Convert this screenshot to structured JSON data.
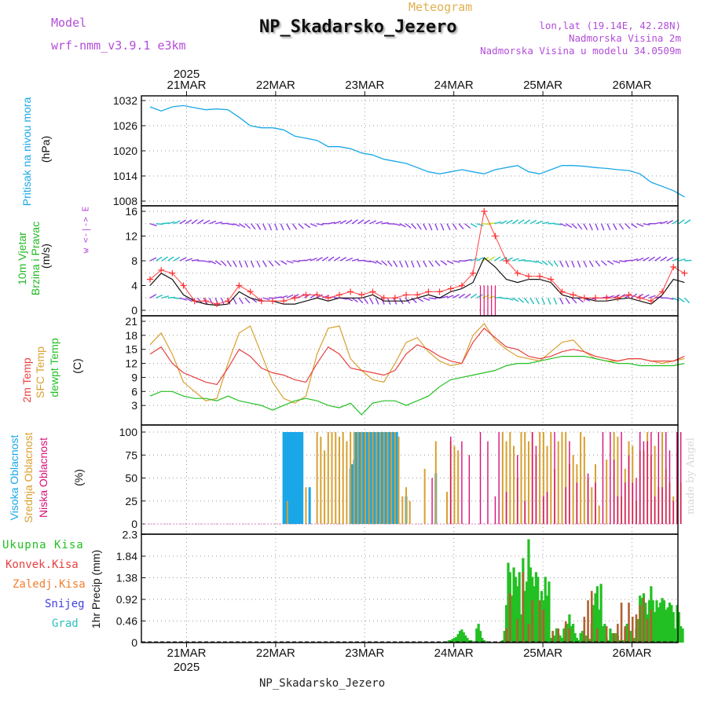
{
  "header": {
    "model_label": "Model",
    "model_name": "wrf-nmm_v3.9.1 e3km",
    "meteogram_label": "Meteogram",
    "station_title": "NP_Skadarsko_Jezero",
    "lonlat": "lon,lat (19.14E, 42.28N)",
    "altitude": "Nadmorska Visina 2m",
    "model_altitude": "Nadmorska Visina u modelu 34.0509m",
    "footer_station": "NP_Skadarsko_Jezero",
    "credit": "made by Angel"
  },
  "colors": {
    "pressure": "#1aa7e8",
    "wind_label": "#22b822",
    "temp2m": "#e84040",
    "sfc": "#d8a030",
    "dew": "#22c022",
    "high_cloud": "#1aa7e8",
    "mid_cloud": "#d8a030",
    "low_cloud": "#d8107a",
    "total_precip": "#22c022",
    "conv_precip": "#e84040",
    "freezing_rain": "#f08030",
    "snow": "#4040e0",
    "hail": "#30c0c0",
    "violet": "#b34dd9"
  },
  "chart_data": [
    {
      "type": "line",
      "name": "pressure",
      "title": "Pritisak na nivou mora",
      "ylabel": "(hPa)",
      "ylim": [
        1008,
        1032
      ],
      "yticks": [
        "1008",
        "1014",
        "1020",
        "1026",
        "1032"
      ],
      "x_hours": [
        0,
        3,
        6,
        9,
        12,
        15,
        18,
        21,
        24,
        27,
        30,
        33,
        36,
        39,
        42,
        45,
        48,
        51,
        54,
        57,
        60,
        63,
        66,
        69,
        72,
        75,
        78,
        81,
        84,
        87,
        90,
        93,
        96,
        99,
        102,
        105,
        108,
        111,
        114,
        117,
        120,
        123,
        126,
        129,
        132,
        135,
        138,
        141,
        144
      ],
      "values": [
        1030.5,
        1029.5,
        1030.5,
        1030.8,
        1030.3,
        1029.8,
        1030.0,
        1029.8,
        1028.0,
        1026.0,
        1025.5,
        1025.5,
        1025.0,
        1023.5,
        1023.0,
        1022.5,
        1021.0,
        1021.0,
        1020.5,
        1019.5,
        1019.0,
        1018.0,
        1017.5,
        1017.0,
        1016.0,
        1015.0,
        1014.5,
        1015.0,
        1015.5,
        1015.0,
        1014.5,
        1015.5,
        1016.0,
        1016.5,
        1015.0,
        1014.5,
        1015.5,
        1016.5,
        1016.5,
        1016.3,
        1016.0,
        1015.8,
        1015.5,
        1015.3,
        1014.5,
        1012.5,
        1011.5,
        1010.5,
        1009.0
      ]
    },
    {
      "type": "line",
      "name": "wind",
      "title": "10m Vjetar Brzina i Pravac",
      "ylabel": "(m/s)",
      "direction_legend": "w  <-|->  E",
      "ylim": [
        -0.5,
        16.5
      ],
      "yticks": [
        "0",
        "4",
        "8",
        "12",
        "16"
      ],
      "x_hours": [
        0,
        3,
        6,
        9,
        12,
        15,
        18,
        21,
        24,
        27,
        30,
        33,
        36,
        39,
        42,
        45,
        48,
        51,
        54,
        57,
        60,
        63,
        66,
        69,
        72,
        75,
        78,
        81,
        84,
        87,
        90,
        93,
        96,
        99,
        102,
        105,
        108,
        111,
        114,
        117,
        120,
        123,
        126,
        129,
        132,
        135,
        138,
        141,
        144
      ],
      "speed": [
        4.0,
        6.0,
        5.0,
        2.5,
        1.5,
        1.0,
        0.8,
        1.0,
        3.0,
        2.0,
        1.5,
        1.5,
        1.0,
        1.0,
        1.5,
        2.0,
        1.5,
        2.0,
        2.0,
        2.0,
        2.5,
        1.5,
        1.5,
        1.5,
        2.0,
        2.5,
        2.0,
        3.0,
        3.5,
        4.5,
        8.5,
        7.0,
        5.0,
        4.5,
        5.0,
        5.0,
        4.5,
        2.5,
        2.0,
        2.0,
        1.5,
        1.5,
        1.8,
        2.0,
        1.5,
        1.0,
        2.5,
        5.0,
        4.5
      ],
      "gust": [
        5.0,
        6.5,
        6.0,
        4.0,
        1.5,
        1.5,
        1.0,
        1.5,
        4.0,
        3.0,
        1.5,
        1.5,
        1.5,
        2.0,
        2.5,
        2.5,
        2.0,
        2.5,
        3.0,
        2.5,
        3.0,
        2.0,
        2.0,
        2.5,
        2.5,
        3.0,
        3.0,
        3.5,
        4.0,
        6.0,
        16.0,
        12.0,
        8.0,
        6.0,
        5.5,
        5.5,
        5.0,
        3.0,
        2.5,
        2.0,
        2.0,
        2.0,
        2.0,
        2.5,
        2.0,
        1.5,
        3.0,
        7.0,
        6.0
      ]
    },
    {
      "type": "line",
      "name": "temperature",
      "ylabel": "(C)",
      "series_labels": [
        "2m Temp",
        "SFC Temp",
        "dewpt Temp"
      ],
      "ylim": [
        0,
        21
      ],
      "yticks": [
        "3",
        "6",
        "9",
        "12",
        "15",
        "18",
        "21"
      ],
      "x_hours": [
        0,
        3,
        6,
        9,
        12,
        15,
        18,
        21,
        24,
        27,
        30,
        33,
        36,
        39,
        42,
        45,
        48,
        51,
        54,
        57,
        60,
        63,
        66,
        69,
        72,
        75,
        78,
        81,
        84,
        87,
        90,
        93,
        96,
        99,
        102,
        105,
        108,
        111,
        114,
        117,
        120,
        123,
        126,
        129,
        132,
        135,
        138,
        141,
        144
      ],
      "temp2m": [
        14.0,
        15.5,
        12.0,
        10.0,
        9.0,
        8.0,
        7.5,
        11.0,
        15.0,
        13.5,
        11.0,
        10.0,
        9.5,
        8.5,
        8.0,
        12.0,
        15.5,
        14.0,
        11.0,
        10.5,
        10.0,
        9.5,
        10.5,
        14.0,
        16.0,
        15.0,
        13.5,
        12.5,
        12.0,
        16.5,
        19.5,
        17.5,
        15.5,
        15.0,
        13.5,
        13.0,
        13.5,
        14.5,
        15.0,
        14.5,
        13.5,
        13.0,
        12.5,
        13.0,
        13.0,
        12.5,
        12.5,
        12.5,
        13.5
      ],
      "sfc": [
        16.0,
        18.5,
        14.0,
        8.0,
        6.0,
        4.0,
        4.5,
        12.0,
        18.5,
        20.0,
        14.0,
        8.0,
        4.5,
        3.5,
        5.0,
        14.0,
        19.5,
        20.0,
        13.0,
        10.5,
        8.5,
        8.0,
        12.0,
        16.5,
        17.5,
        14.5,
        12.5,
        11.5,
        12.0,
        18.0,
        20.5,
        17.0,
        15.0,
        13.5,
        13.0,
        12.5,
        14.5,
        16.5,
        17.0,
        14.5,
        13.0,
        12.5,
        12.5,
        13.0,
        13.0,
        12.5,
        12.0,
        12.5,
        13.0
      ],
      "dew": [
        5.0,
        6.0,
        6.0,
        5.0,
        4.5,
        4.5,
        4.0,
        5.0,
        4.0,
        3.5,
        3.0,
        2.0,
        3.0,
        4.0,
        4.5,
        4.0,
        3.0,
        2.5,
        3.5,
        1.0,
        3.5,
        4.0,
        4.0,
        3.0,
        4.0,
        5.0,
        7.0,
        8.5,
        9.0,
        9.5,
        10.0,
        10.5,
        11.5,
        12.0,
        12.0,
        12.5,
        13.0,
        13.5,
        13.5,
        13.5,
        13.0,
        12.5,
        12.0,
        12.0,
        11.5,
        11.5,
        11.5,
        11.5,
        12.0
      ]
    },
    {
      "type": "bar",
      "name": "clouds",
      "ylabel": "(%)",
      "series_labels": [
        "Visoka Oblacnost",
        "Srednja Oblacnost",
        "Niska Oblacnost"
      ],
      "ylim": [
        0,
        100
      ],
      "yticks": [
        "0",
        "25",
        "50",
        "75",
        "100"
      ],
      "high_hours": [
        36,
        36.5,
        37,
        37.5,
        38,
        38.5,
        39,
        39.5,
        40,
        40.5,
        41,
        43,
        54,
        54.5,
        55,
        55.5,
        56,
        56.5,
        57,
        57.5,
        58,
        58.5,
        59,
        59.5,
        60,
        60.5,
        61,
        61.5,
        62,
        62.5,
        63,
        63.5,
        64,
        64.5,
        65,
        65.5,
        66,
        66.5,
        69,
        77
      ],
      "high_values": [
        100,
        100,
        100,
        100,
        100,
        100,
        100,
        100,
        100,
        100,
        100,
        40,
        60,
        65,
        70,
        100,
        100,
        100,
        100,
        100,
        100,
        100,
        100,
        100,
        100,
        100,
        100,
        100,
        100,
        100,
        100,
        100,
        100,
        100,
        100,
        100,
        100,
        100,
        30,
        55
      ],
      "mid_hours": [
        37,
        42,
        45,
        46,
        47,
        48,
        49,
        50,
        51,
        52,
        53,
        54,
        55,
        56,
        57,
        58,
        59,
        60,
        61,
        62,
        63,
        64,
        65,
        66,
        67,
        68,
        69,
        70,
        74,
        77,
        80,
        81,
        82,
        83,
        95,
        96,
        97,
        98,
        99,
        100,
        101,
        102,
        103,
        104,
        105,
        106,
        107,
        108,
        109,
        110,
        111,
        112,
        113,
        114,
        115,
        116,
        117,
        118,
        119,
        120,
        121,
        123,
        125,
        126,
        127,
        128,
        129,
        130,
        131,
        132,
        133,
        134,
        135,
        136,
        137,
        138,
        139,
        140,
        141,
        142,
        143
      ],
      "mid_values": [
        25,
        40,
        100,
        95,
        80,
        100,
        100,
        100,
        95,
        100,
        90,
        100,
        100,
        100,
        100,
        100,
        100,
        100,
        100,
        100,
        100,
        100,
        100,
        100,
        95,
        30,
        40,
        25,
        60,
        90,
        35,
        90,
        85,
        80,
        100,
        90,
        100,
        85,
        50,
        100,
        100,
        90,
        100,
        75,
        100,
        100,
        85,
        100,
        60,
        90,
        100,
        100,
        65,
        75,
        65,
        100,
        95,
        50,
        40,
        65,
        20,
        70,
        100,
        95,
        30,
        60,
        90,
        85,
        25,
        80,
        80,
        100,
        75,
        85,
        40,
        100,
        60,
        45,
        30,
        100,
        45
      ],
      "low_hours": [
        76,
        81,
        84,
        86,
        89,
        91,
        93,
        94,
        96,
        99,
        101,
        103,
        104,
        106,
        107,
        109,
        112,
        113,
        115,
        118,
        120,
        122,
        124,
        125,
        126,
        127,
        128,
        129,
        130,
        131,
        132,
        133,
        134,
        135,
        136,
        137,
        138,
        139,
        140,
        141,
        142,
        143
      ],
      "low_values": [
        50,
        95,
        90,
        75,
        100,
        90,
        30,
        100,
        35,
        75,
        25,
        100,
        85,
        30,
        35,
        100,
        40,
        90,
        45,
        55,
        45,
        100,
        100,
        70,
        30,
        100,
        45,
        75,
        45,
        50,
        100,
        90,
        90,
        100,
        30,
        100,
        40,
        100,
        80,
        25,
        100,
        100
      ]
    },
    {
      "type": "bar",
      "name": "precipitation",
      "ylabel": "1hr Precip (mm)",
      "series_labels": [
        "Ukupna Kisa",
        "Konvek.Kisa",
        "Zaledj.Kisa",
        "Snijeg",
        "Grad"
      ],
      "ylim": [
        0,
        2.3
      ],
      "yticks": [
        "0",
        "0.46",
        "0.92",
        "1.38",
        "1.84",
        "2.3"
      ],
      "x_tick_labels": [
        "21MAR",
        "22MAR",
        "23MAR",
        "24MAR",
        "25MAR",
        "26MAR"
      ],
      "year_label": "2025",
      "total_hours": [
        80,
        80.5,
        81,
        81.5,
        82,
        82.5,
        83,
        83.5,
        84,
        84.5,
        85,
        85.5,
        86,
        86.5,
        87,
        87.5,
        88,
        88.5,
        89,
        89.5,
        90,
        90.5,
        91,
        91.5,
        95,
        95.5,
        96,
        96.5,
        97,
        97.5,
        98,
        98.5,
        99,
        99.5,
        100,
        100.5,
        101,
        101.5,
        102,
        102.5,
        103,
        103.5,
        104,
        104.5,
        105,
        105.5,
        106,
        106.5,
        107,
        107.5,
        108,
        108.5,
        109,
        109.5,
        110,
        110.5,
        111,
        111.5,
        112,
        112.5,
        113,
        113.5,
        114,
        114.5,
        115,
        115.5,
        116,
        116.5,
        117,
        117.5,
        118,
        118.5,
        119,
        119.5,
        120,
        120.5,
        121,
        121.5,
        122,
        122.5,
        123,
        123.5,
        124,
        124.5,
        125,
        125.5,
        126,
        126.5,
        127,
        127.5,
        128,
        128.5,
        129,
        129.5,
        130,
        130.5,
        131,
        131.5,
        132,
        132.5,
        133,
        133.5,
        134,
        134.5,
        135,
        135.5,
        136,
        136.5,
        137,
        137.5,
        138,
        138.5,
        139,
        139.5,
        140,
        140.5,
        141,
        141.5,
        142,
        142.5,
        143,
        143.5
      ],
      "total_values": [
        0.02,
        0.05,
        0.05,
        0.08,
        0.1,
        0.12,
        0.18,
        0.25,
        0.28,
        0.22,
        0.15,
        0.1,
        0.05,
        0.05,
        0.03,
        0.02,
        0.3,
        0.4,
        0.25,
        0.1,
        0.05,
        0.03,
        0.02,
        0.01,
        0.05,
        0.25,
        0.8,
        1.7,
        1.5,
        1.0,
        1.6,
        1.4,
        1.2,
        1.5,
        0.6,
        1.8,
        1.1,
        1.3,
        2.2,
        1.6,
        1.4,
        1.2,
        1.5,
        1.4,
        0.5,
        1.1,
        0.9,
        1.4,
        1.0,
        1.3,
        0.1,
        0.05,
        0.15,
        0.3,
        0.2,
        0.15,
        0.1,
        0.3,
        0.35,
        0.4,
        0.6,
        0.35,
        0.4,
        0.2,
        0.1,
        0.05,
        0.2,
        0.25,
        0.1,
        0.15,
        0.05,
        0.08,
        0.4,
        0.8,
        1.05,
        1.2,
        0.7,
        1.25,
        0.35,
        0.4,
        0.1,
        0.05,
        0.3,
        0.2,
        0.15,
        0.2,
        0.15,
        0.05,
        0.02,
        0.05,
        0.3,
        0.4,
        0.15,
        0.25,
        0.05,
        0.1,
        0.3,
        0.5,
        1.0,
        0.95,
        1.05,
        0.85,
        0.6,
        0.9,
        1.2,
        0.9,
        0.65,
        0.9,
        0.75,
        0.85,
        0.95,
        0.9,
        0.7,
        0.75,
        0.85,
        0.8,
        0.65,
        0.3,
        0.8,
        0.65,
        0.35,
        0.3,
        0.1,
        0.05,
        0.2,
        0.35,
        0.1,
        0.15
      ],
      "conv_hours": [
        96,
        97,
        99,
        100.5,
        102,
        103,
        105,
        106,
        108.5,
        110,
        112,
        113,
        117,
        118,
        119,
        120.5,
        123,
        125,
        126,
        127,
        128,
        129,
        130,
        131,
        132,
        133,
        134,
        135
      ],
      "conv_values": [
        0.3,
        1.05,
        0.5,
        1.5,
        0.4,
        0.9,
        0.9,
        0.7,
        0.25,
        0.3,
        0.45,
        0.3,
        0.55,
        0.9,
        1.1,
        0.3,
        0.35,
        0.2,
        0.4,
        0.85,
        0.35,
        0.85,
        0.55,
        0.6,
        0.8,
        0.95,
        0.5,
        0.7
      ]
    }
  ]
}
